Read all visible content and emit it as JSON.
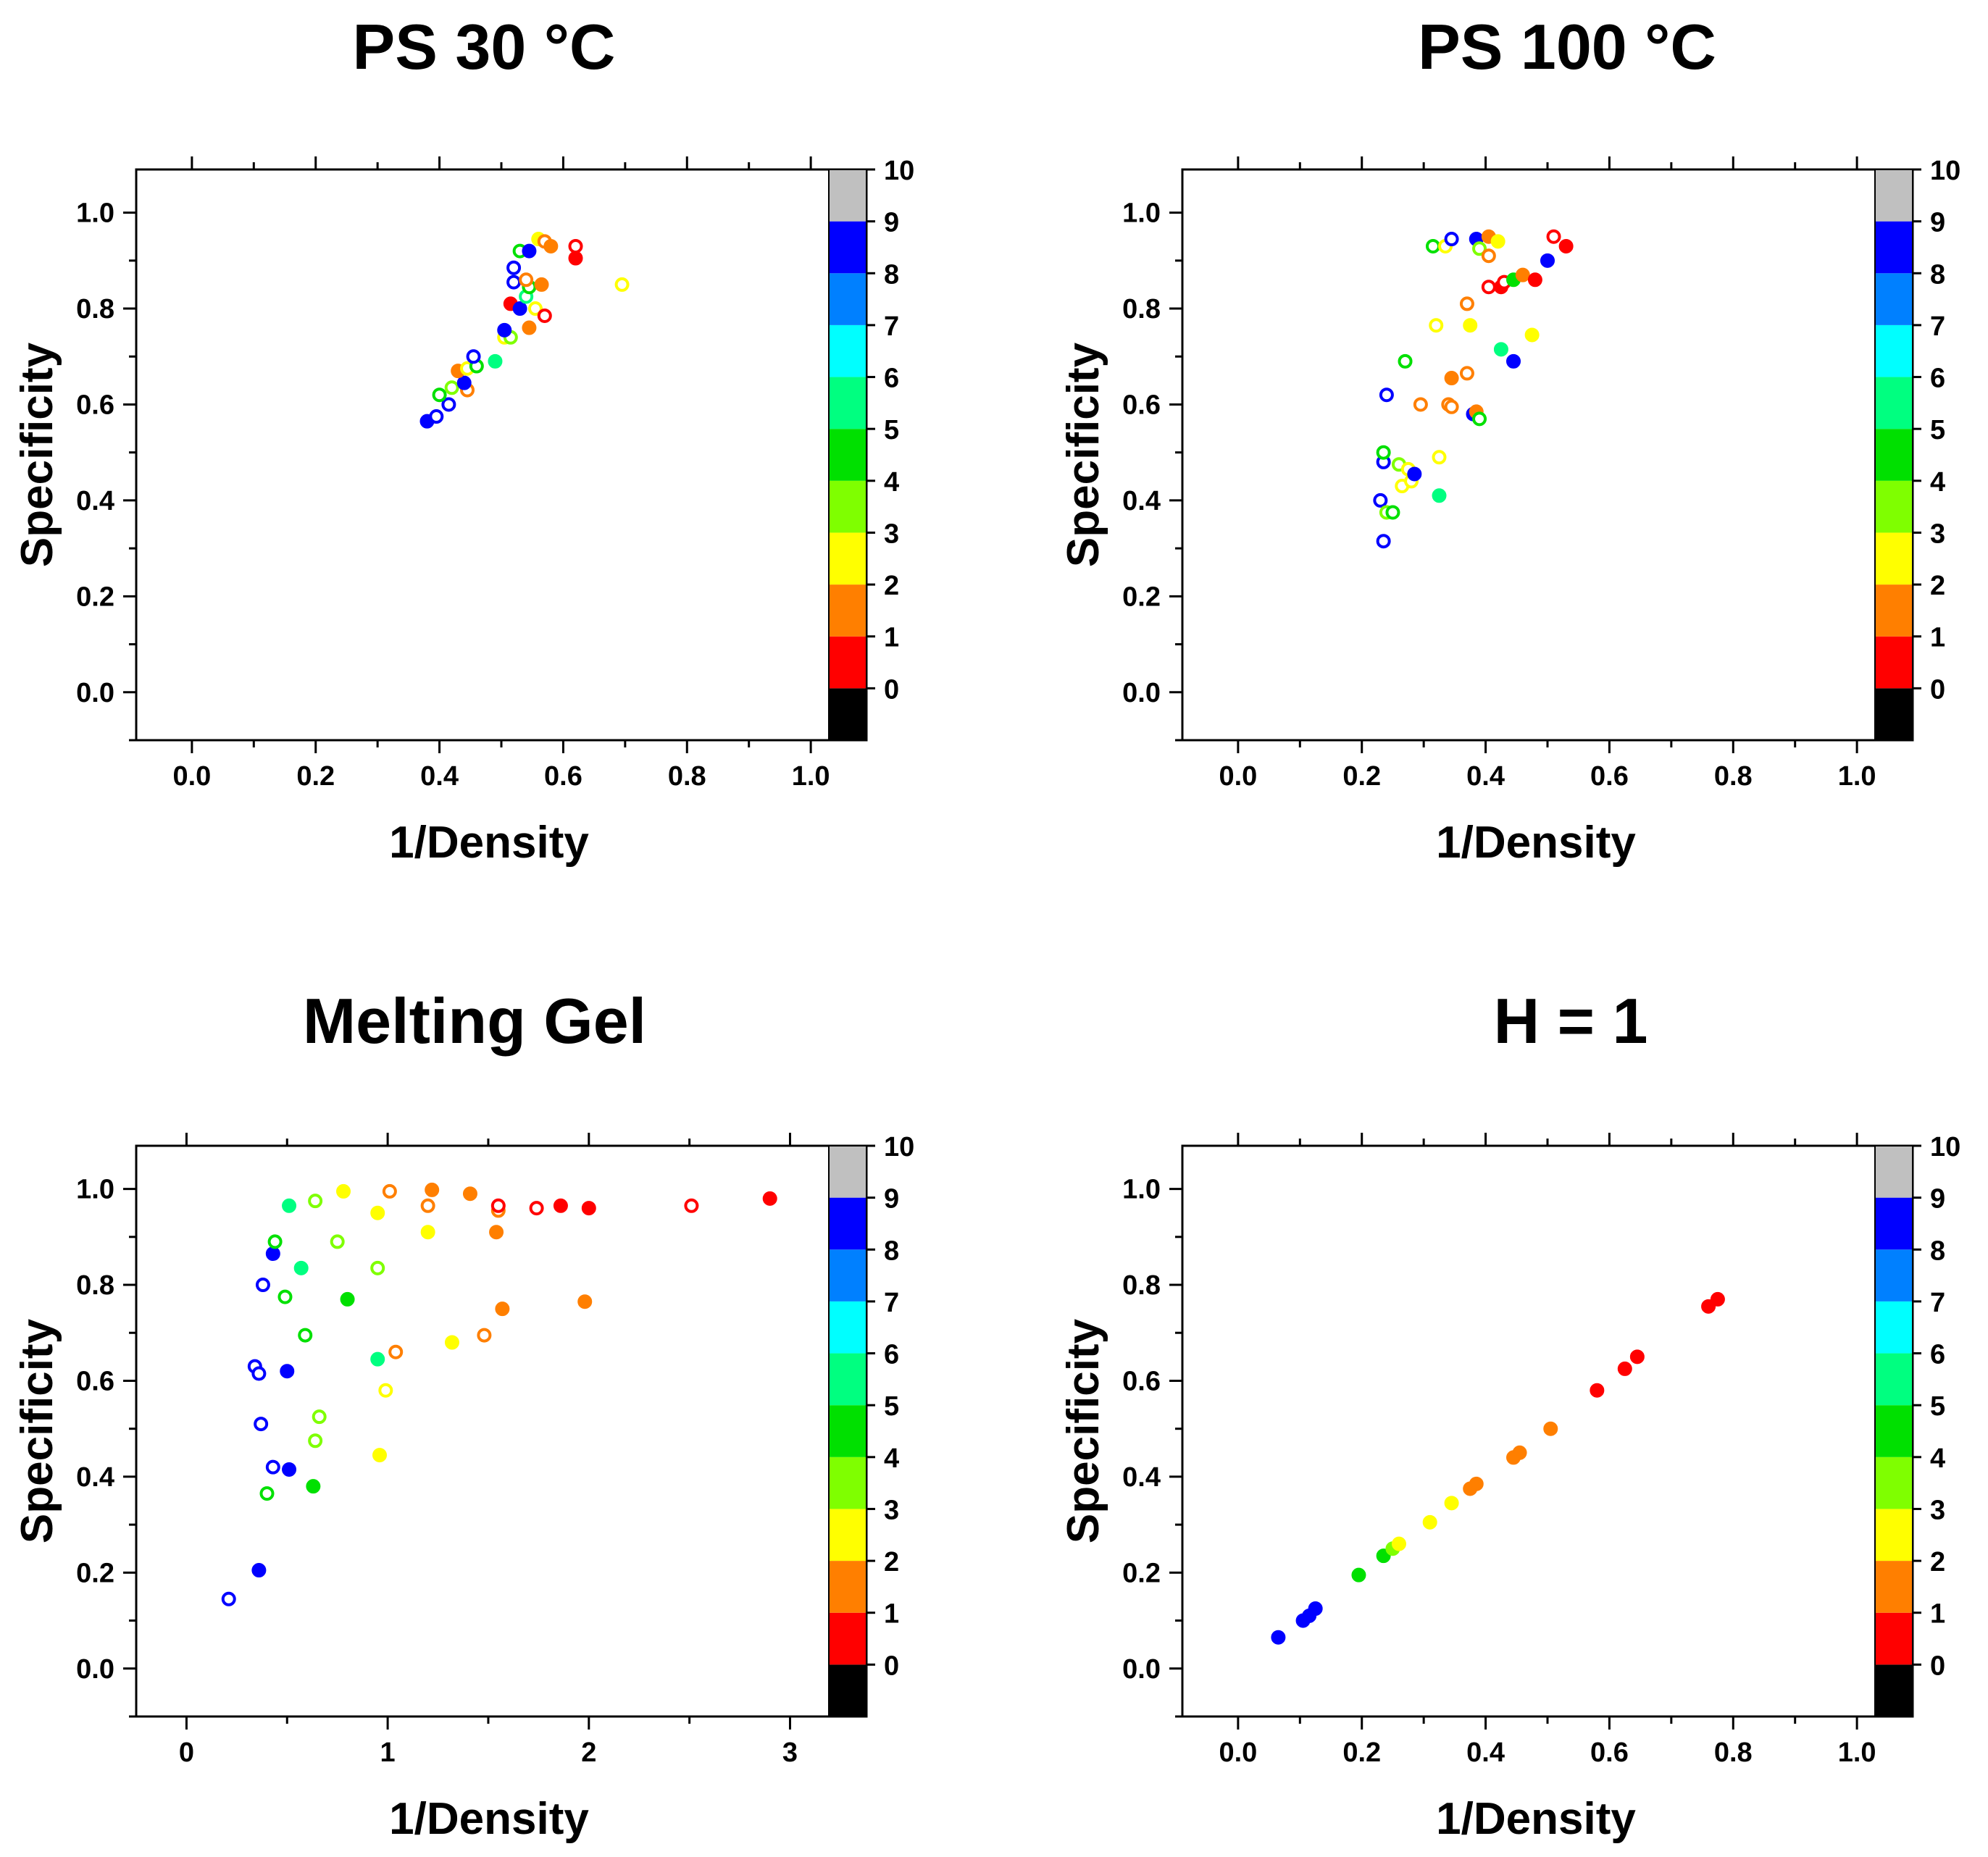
{
  "chart_data": [
    {
      "type": "scatter",
      "title": "PS 30 °C",
      "xlabel": "1/Density",
      "ylabel": "Specificity",
      "xlim": [
        -0.09,
        1.09
      ],
      "ylim": [
        -0.1,
        1.09
      ],
      "xticks": [
        0.0,
        0.2,
        0.4,
        0.6,
        0.8,
        1.0
      ],
      "xtick_labels": [
        "0.0",
        "0.2",
        "0.4",
        "0.6",
        "0.8",
        "1.0"
      ],
      "yticks": [
        0.0,
        0.2,
        0.4,
        0.6,
        0.8,
        1.0
      ],
      "ytick_labels": [
        "0.0",
        "0.2",
        "0.4",
        "0.6",
        "0.8",
        "1.0"
      ],
      "points": [
        {
          "x": 0.38,
          "y": 0.565,
          "c": 9,
          "filled": true
        },
        {
          "x": 0.395,
          "y": 0.575,
          "c": 9,
          "filled": false
        },
        {
          "x": 0.415,
          "y": 0.6,
          "c": 9,
          "filled": false
        },
        {
          "x": 0.4,
          "y": 0.62,
          "c": 4,
          "filled": false
        },
        {
          "x": 0.42,
          "y": 0.635,
          "c": 3,
          "filled": false
        },
        {
          "x": 0.445,
          "y": 0.63,
          "c": 1,
          "filled": false
        },
        {
          "x": 0.44,
          "y": 0.645,
          "c": 9,
          "filled": true
        },
        {
          "x": 0.43,
          "y": 0.67,
          "c": 1,
          "filled": true
        },
        {
          "x": 0.445,
          "y": 0.675,
          "c": 2,
          "filled": false
        },
        {
          "x": 0.46,
          "y": 0.68,
          "c": 4,
          "filled": false
        },
        {
          "x": 0.455,
          "y": 0.7,
          "c": 9,
          "filled": false
        },
        {
          "x": 0.49,
          "y": 0.69,
          "c": 5,
          "filled": true
        },
        {
          "x": 0.505,
          "y": 0.74,
          "c": 2,
          "filled": false
        },
        {
          "x": 0.515,
          "y": 0.74,
          "c": 3,
          "filled": false
        },
        {
          "x": 0.505,
          "y": 0.755,
          "c": 9,
          "filled": true
        },
        {
          "x": 0.545,
          "y": 0.76,
          "c": 1,
          "filled": true
        },
        {
          "x": 0.515,
          "y": 0.81,
          "c": 0,
          "filled": true
        },
        {
          "x": 0.53,
          "y": 0.8,
          "c": 9,
          "filled": true
        },
        {
          "x": 0.555,
          "y": 0.8,
          "c": 2,
          "filled": false
        },
        {
          "x": 0.57,
          "y": 0.785,
          "c": 0,
          "filled": false
        },
        {
          "x": 0.54,
          "y": 0.825,
          "c": 5,
          "filled": false
        },
        {
          "x": 0.545,
          "y": 0.845,
          "c": 4,
          "filled": false
        },
        {
          "x": 0.52,
          "y": 0.855,
          "c": 9,
          "filled": false
        },
        {
          "x": 0.565,
          "y": 0.85,
          "c": 1,
          "filled": true
        },
        {
          "x": 0.54,
          "y": 0.86,
          "c": 1,
          "filled": false
        },
        {
          "x": 0.52,
          "y": 0.885,
          "c": 9,
          "filled": false
        },
        {
          "x": 0.53,
          "y": 0.92,
          "c": 4,
          "filled": false
        },
        {
          "x": 0.545,
          "y": 0.92,
          "c": 9,
          "filled": true
        },
        {
          "x": 0.56,
          "y": 0.945,
          "c": 2,
          "filled": true
        },
        {
          "x": 0.57,
          "y": 0.94,
          "c": 1,
          "filled": false
        },
        {
          "x": 0.58,
          "y": 0.93,
          "c": 1,
          "filled": true
        },
        {
          "x": 0.62,
          "y": 0.93,
          "c": 0,
          "filled": false
        },
        {
          "x": 0.62,
          "y": 0.905,
          "c": 0,
          "filled": true
        },
        {
          "x": 0.695,
          "y": 0.85,
          "c": 2,
          "filled": false
        }
      ]
    },
    {
      "type": "scatter",
      "title": "PS 100 °C",
      "xlabel": "1/Density",
      "ylabel": "Specificity",
      "xlim": [
        -0.09,
        1.09
      ],
      "ylim": [
        -0.1,
        1.09
      ],
      "xticks": [
        0.0,
        0.2,
        0.4,
        0.6,
        0.8,
        1.0
      ],
      "xtick_labels": [
        "0.0",
        "0.2",
        "0.4",
        "0.6",
        "0.8",
        "1.0"
      ],
      "yticks": [
        0.0,
        0.2,
        0.4,
        0.6,
        0.8,
        1.0
      ],
      "ytick_labels": [
        "0.0",
        "0.2",
        "0.4",
        "0.6",
        "0.8",
        "1.0"
      ],
      "points": [
        {
          "x": 0.235,
          "y": 0.315,
          "c": 9,
          "filled": false
        },
        {
          "x": 0.23,
          "y": 0.4,
          "c": 9,
          "filled": false
        },
        {
          "x": 0.24,
          "y": 0.375,
          "c": 3,
          "filled": false
        },
        {
          "x": 0.25,
          "y": 0.375,
          "c": 4,
          "filled": false
        },
        {
          "x": 0.265,
          "y": 0.43,
          "c": 2,
          "filled": false
        },
        {
          "x": 0.28,
          "y": 0.44,
          "c": 2,
          "filled": false
        },
        {
          "x": 0.325,
          "y": 0.41,
          "c": 5,
          "filled": true
        },
        {
          "x": 0.235,
          "y": 0.48,
          "c": 9,
          "filled": false
        },
        {
          "x": 0.235,
          "y": 0.5,
          "c": 4,
          "filled": false
        },
        {
          "x": 0.26,
          "y": 0.475,
          "c": 3,
          "filled": false
        },
        {
          "x": 0.275,
          "y": 0.465,
          "c": 2,
          "filled": false
        },
        {
          "x": 0.285,
          "y": 0.455,
          "c": 9,
          "filled": true
        },
        {
          "x": 0.325,
          "y": 0.49,
          "c": 2,
          "filled": false
        },
        {
          "x": 0.24,
          "y": 0.62,
          "c": 9,
          "filled": false
        },
        {
          "x": 0.295,
          "y": 0.6,
          "c": 1,
          "filled": false
        },
        {
          "x": 0.34,
          "y": 0.6,
          "c": 1,
          "filled": false
        },
        {
          "x": 0.345,
          "y": 0.595,
          "c": 1,
          "filled": false
        },
        {
          "x": 0.38,
          "y": 0.58,
          "c": 9,
          "filled": true
        },
        {
          "x": 0.385,
          "y": 0.585,
          "c": 1,
          "filled": true
        },
        {
          "x": 0.39,
          "y": 0.57,
          "c": 4,
          "filled": false
        },
        {
          "x": 0.345,
          "y": 0.655,
          "c": 1,
          "filled": true
        },
        {
          "x": 0.37,
          "y": 0.665,
          "c": 1,
          "filled": false
        },
        {
          "x": 0.27,
          "y": 0.69,
          "c": 4,
          "filled": false
        },
        {
          "x": 0.425,
          "y": 0.715,
          "c": 5,
          "filled": true
        },
        {
          "x": 0.445,
          "y": 0.69,
          "c": 9,
          "filled": true
        },
        {
          "x": 0.475,
          "y": 0.745,
          "c": 2,
          "filled": true
        },
        {
          "x": 0.32,
          "y": 0.765,
          "c": 2,
          "filled": false
        },
        {
          "x": 0.375,
          "y": 0.765,
          "c": 2,
          "filled": true
        },
        {
          "x": 0.37,
          "y": 0.81,
          "c": 1,
          "filled": false
        },
        {
          "x": 0.405,
          "y": 0.845,
          "c": 0,
          "filled": false
        },
        {
          "x": 0.425,
          "y": 0.845,
          "c": 0,
          "filled": true
        },
        {
          "x": 0.43,
          "y": 0.855,
          "c": 0,
          "filled": false
        },
        {
          "x": 0.445,
          "y": 0.86,
          "c": 4,
          "filled": true
        },
        {
          "x": 0.46,
          "y": 0.87,
          "c": 1,
          "filled": true
        },
        {
          "x": 0.48,
          "y": 0.86,
          "c": 0,
          "filled": true
        },
        {
          "x": 0.5,
          "y": 0.9,
          "c": 9,
          "filled": true
        },
        {
          "x": 0.315,
          "y": 0.93,
          "c": 4,
          "filled": false
        },
        {
          "x": 0.335,
          "y": 0.93,
          "c": 2,
          "filled": false
        },
        {
          "x": 0.345,
          "y": 0.945,
          "c": 9,
          "filled": false
        },
        {
          "x": 0.385,
          "y": 0.945,
          "c": 9,
          "filled": true
        },
        {
          "x": 0.39,
          "y": 0.925,
          "c": 3,
          "filled": false
        },
        {
          "x": 0.405,
          "y": 0.95,
          "c": 1,
          "filled": true
        },
        {
          "x": 0.405,
          "y": 0.91,
          "c": 1,
          "filled": false
        },
        {
          "x": 0.42,
          "y": 0.94,
          "c": 2,
          "filled": true
        },
        {
          "x": 0.51,
          "y": 0.95,
          "c": 0,
          "filled": false
        },
        {
          "x": 0.53,
          "y": 0.93,
          "c": 0,
          "filled": true
        }
      ]
    },
    {
      "type": "scatter",
      "title": "Melting Gel",
      "xlabel": "1/Density",
      "ylabel": "Specificity",
      "xlim": [
        -0.25,
        3.38
      ],
      "ylim": [
        -0.1,
        1.09
      ],
      "xticks": [
        0,
        1,
        2,
        3
      ],
      "xtick_labels": [
        "0",
        "1",
        "2",
        "3"
      ],
      "yticks": [
        0.0,
        0.2,
        0.4,
        0.6,
        0.8,
        1.0
      ],
      "ytick_labels": [
        "0.0",
        "0.2",
        "0.4",
        "0.6",
        "0.8",
        "1.0"
      ],
      "points": [
        {
          "x": 0.21,
          "y": 0.145,
          "c": 9,
          "filled": false
        },
        {
          "x": 0.36,
          "y": 0.205,
          "c": 9,
          "filled": true
        },
        {
          "x": 0.4,
          "y": 0.365,
          "c": 4,
          "filled": false
        },
        {
          "x": 0.43,
          "y": 0.42,
          "c": 9,
          "filled": false
        },
        {
          "x": 0.51,
          "y": 0.415,
          "c": 9,
          "filled": true
        },
        {
          "x": 0.63,
          "y": 0.38,
          "c": 4,
          "filled": true
        },
        {
          "x": 0.37,
          "y": 0.51,
          "c": 9,
          "filled": false
        },
        {
          "x": 0.64,
          "y": 0.475,
          "c": 3,
          "filled": false
        },
        {
          "x": 0.66,
          "y": 0.525,
          "c": 3,
          "filled": false
        },
        {
          "x": 0.96,
          "y": 0.445,
          "c": 2,
          "filled": true
        },
        {
          "x": 0.34,
          "y": 0.63,
          "c": 9,
          "filled": false
        },
        {
          "x": 0.36,
          "y": 0.615,
          "c": 9,
          "filled": false
        },
        {
          "x": 0.5,
          "y": 0.62,
          "c": 9,
          "filled": true
        },
        {
          "x": 0.59,
          "y": 0.695,
          "c": 4,
          "filled": false
        },
        {
          "x": 0.95,
          "y": 0.645,
          "c": 5,
          "filled": true
        },
        {
          "x": 0.99,
          "y": 0.58,
          "c": 2,
          "filled": false
        },
        {
          "x": 1.04,
          "y": 0.66,
          "c": 1,
          "filled": false
        },
        {
          "x": 1.32,
          "y": 0.68,
          "c": 2,
          "filled": true
        },
        {
          "x": 1.48,
          "y": 0.695,
          "c": 1,
          "filled": false
        },
        {
          "x": 1.57,
          "y": 0.75,
          "c": 1,
          "filled": true
        },
        {
          "x": 1.98,
          "y": 0.765,
          "c": 1,
          "filled": true
        },
        {
          "x": 0.38,
          "y": 0.8,
          "c": 9,
          "filled": false
        },
        {
          "x": 0.49,
          "y": 0.775,
          "c": 4,
          "filled": false
        },
        {
          "x": 0.57,
          "y": 0.835,
          "c": 5,
          "filled": true
        },
        {
          "x": 0.8,
          "y": 0.77,
          "c": 4,
          "filled": true
        },
        {
          "x": 0.95,
          "y": 0.835,
          "c": 3,
          "filled": false
        },
        {
          "x": 0.43,
          "y": 0.865,
          "c": 9,
          "filled": true
        },
        {
          "x": 0.44,
          "y": 0.89,
          "c": 4,
          "filled": false
        },
        {
          "x": 0.75,
          "y": 0.89,
          "c": 3,
          "filled": false
        },
        {
          "x": 0.51,
          "y": 0.965,
          "c": 5,
          "filled": true
        },
        {
          "x": 0.64,
          "y": 0.975,
          "c": 3,
          "filled": false
        },
        {
          "x": 0.78,
          "y": 0.995,
          "c": 2,
          "filled": true
        },
        {
          "x": 0.95,
          "y": 0.95,
          "c": 2,
          "filled": true
        },
        {
          "x": 1.01,
          "y": 0.995,
          "c": 1,
          "filled": false
        },
        {
          "x": 1.2,
          "y": 0.91,
          "c": 2,
          "filled": true
        },
        {
          "x": 1.2,
          "y": 0.965,
          "c": 1,
          "filled": false
        },
        {
          "x": 1.22,
          "y": 0.998,
          "c": 1,
          "filled": true
        },
        {
          "x": 1.41,
          "y": 0.99,
          "c": 1,
          "filled": true
        },
        {
          "x": 1.54,
          "y": 0.91,
          "c": 1,
          "filled": true
        },
        {
          "x": 1.55,
          "y": 0.955,
          "c": 1,
          "filled": false
        },
        {
          "x": 1.55,
          "y": 0.965,
          "c": 0,
          "filled": false
        },
        {
          "x": 1.74,
          "y": 0.96,
          "c": 0,
          "filled": false
        },
        {
          "x": 1.86,
          "y": 0.965,
          "c": 0,
          "filled": true
        },
        {
          "x": 2.0,
          "y": 0.96,
          "c": 0,
          "filled": true
        },
        {
          "x": 2.51,
          "y": 0.965,
          "c": 0,
          "filled": false
        },
        {
          "x": 2.9,
          "y": 0.98,
          "c": 0,
          "filled": true
        }
      ]
    },
    {
      "type": "scatter",
      "title": "H = 1",
      "xlabel": "1/Density",
      "ylabel": "Specificity",
      "xlim": [
        -0.09,
        1.09
      ],
      "ylim": [
        -0.1,
        1.09
      ],
      "xticks": [
        0.0,
        0.2,
        0.4,
        0.6,
        0.8,
        1.0
      ],
      "xtick_labels": [
        "0.0",
        "0.2",
        "0.4",
        "0.6",
        "0.8",
        "1.0"
      ],
      "yticks": [
        0.0,
        0.2,
        0.4,
        0.6,
        0.8,
        1.0
      ],
      "ytick_labels": [
        "0.0",
        "0.2",
        "0.4",
        "0.6",
        "0.8",
        "1.0"
      ],
      "points": [
        {
          "x": 0.065,
          "y": 0.065,
          "c": 9,
          "filled": true
        },
        {
          "x": 0.105,
          "y": 0.1,
          "c": 9,
          "filled": true
        },
        {
          "x": 0.115,
          "y": 0.11,
          "c": 9,
          "filled": true
        },
        {
          "x": 0.125,
          "y": 0.125,
          "c": 9,
          "filled": true
        },
        {
          "x": 0.195,
          "y": 0.195,
          "c": 4,
          "filled": true
        },
        {
          "x": 0.235,
          "y": 0.235,
          "c": 4,
          "filled": true
        },
        {
          "x": 0.25,
          "y": 0.25,
          "c": 3,
          "filled": true
        },
        {
          "x": 0.26,
          "y": 0.26,
          "c": 2,
          "filled": true
        },
        {
          "x": 0.31,
          "y": 0.305,
          "c": 2,
          "filled": true
        },
        {
          "x": 0.345,
          "y": 0.345,
          "c": 2,
          "filled": true
        },
        {
          "x": 0.375,
          "y": 0.375,
          "c": 1,
          "filled": true
        },
        {
          "x": 0.385,
          "y": 0.385,
          "c": 1,
          "filled": true
        },
        {
          "x": 0.445,
          "y": 0.44,
          "c": 1,
          "filled": true
        },
        {
          "x": 0.455,
          "y": 0.45,
          "c": 1,
          "filled": true
        },
        {
          "x": 0.505,
          "y": 0.5,
          "c": 1,
          "filled": true
        },
        {
          "x": 0.58,
          "y": 0.58,
          "c": 0,
          "filled": true
        },
        {
          "x": 0.625,
          "y": 0.625,
          "c": 0,
          "filled": true
        },
        {
          "x": 0.645,
          "y": 0.65,
          "c": 0,
          "filled": true
        },
        {
          "x": 0.76,
          "y": 0.755,
          "c": 0,
          "filled": true
        },
        {
          "x": 0.775,
          "y": 0.77,
          "c": 0,
          "filled": true
        }
      ]
    }
  ],
  "colorbar": {
    "labels": [
      "0",
      "1",
      "2",
      "3",
      "4",
      "5",
      "6",
      "7",
      "8",
      "9",
      "10"
    ],
    "bands_bottom_to_top": [
      "#000000",
      "#ff0000",
      "#ff7f00",
      "#ffff00",
      "#7fff00",
      "#00e000",
      "#00ff80",
      "#00ffff",
      "#0080ff",
      "#0000ff",
      "#c0c0c0"
    ],
    "point_colors": [
      "#ff0000",
      "#ff7f00",
      "#ffff00",
      "#7fff00",
      "#00e000",
      "#00ff80",
      "#00ffff",
      "#0080ff",
      "#0000ff",
      "#0000ff"
    ]
  }
}
